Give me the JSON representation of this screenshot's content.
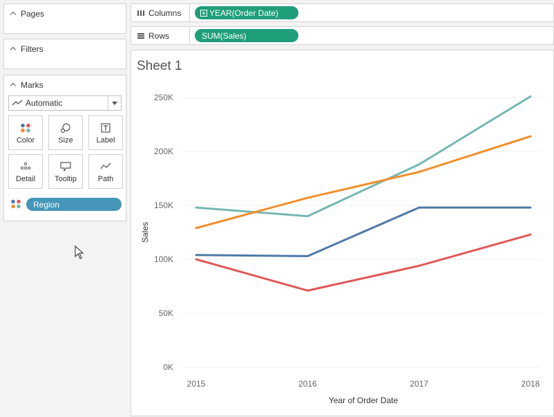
{
  "left_panel": {
    "pages": {
      "label": "Pages"
    },
    "filters": {
      "label": "Filters"
    },
    "marks": {
      "label": "Marks",
      "mark_type": "Automatic",
      "buttons": [
        {
          "label": "Color",
          "icon": "color-dots-icon"
        },
        {
          "label": "Size",
          "icon": "size-icon"
        },
        {
          "label": "Label",
          "icon": "label-icon"
        },
        {
          "label": "Detail",
          "icon": "detail-icon"
        },
        {
          "label": "Tooltip",
          "icon": "tooltip-icon"
        },
        {
          "label": "Path",
          "icon": "path-icon"
        }
      ],
      "color_field": "Region"
    }
  },
  "shelves": {
    "columns": {
      "label": "Columns",
      "pill": "YEAR(Order Date)",
      "pill_color": "#1f9e7a"
    },
    "rows": {
      "label": "Rows",
      "pill": "SUM(Sales)",
      "pill_color": "#1f9e7a"
    }
  },
  "sheet": {
    "title": "Sheet 1"
  },
  "chart_data": {
    "type": "line",
    "x": [
      "2015",
      "2016",
      "2017",
      "2018"
    ],
    "xlabel": "Year of Order Date",
    "ylabel": "Sales",
    "ylim": [
      0,
      250000
    ],
    "yticks": [
      "0K",
      "50K",
      "100K",
      "150K",
      "200K",
      "250K"
    ],
    "ytick_values": [
      0,
      50000,
      100000,
      150000,
      200000,
      250000
    ],
    "grid": true,
    "legend": "none",
    "series": [
      {
        "color": "#76b7b2",
        "values": [
          148000,
          140000,
          188000,
          251000
        ]
      },
      {
        "color": "#f28e2b",
        "values": [
          129000,
          157000,
          181000,
          214000
        ]
      },
      {
        "color": "#4e79a7",
        "values": [
          104000,
          103000,
          148000,
          148000
        ]
      },
      {
        "color": "#e15759",
        "values": [
          100000,
          71000,
          94000,
          123000
        ]
      }
    ]
  },
  "colors": {
    "pill_green": "#1f9e7a",
    "pill_blue": "#4596b8"
  }
}
